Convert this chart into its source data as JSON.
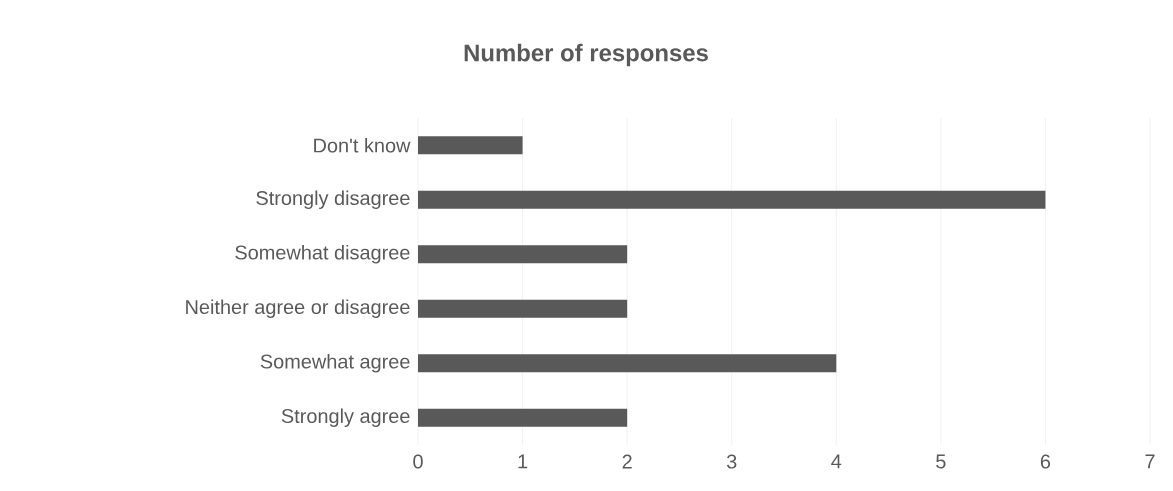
{
  "chart_data": {
    "type": "bar",
    "orientation": "horizontal",
    "title": "Number of responses",
    "categories": [
      "Don't know",
      "Strongly disagree",
      "Somewhat disagree",
      "Neither agree or disagree",
      "Somewhat agree",
      "Strongly agree"
    ],
    "values": [
      1,
      6,
      2,
      2,
      4,
      2
    ],
    "color": "#595959",
    "xlim": [
      0,
      7
    ],
    "xticks": [
      0,
      1,
      2,
      3,
      4,
      5,
      6,
      7
    ],
    "grid": "x"
  }
}
